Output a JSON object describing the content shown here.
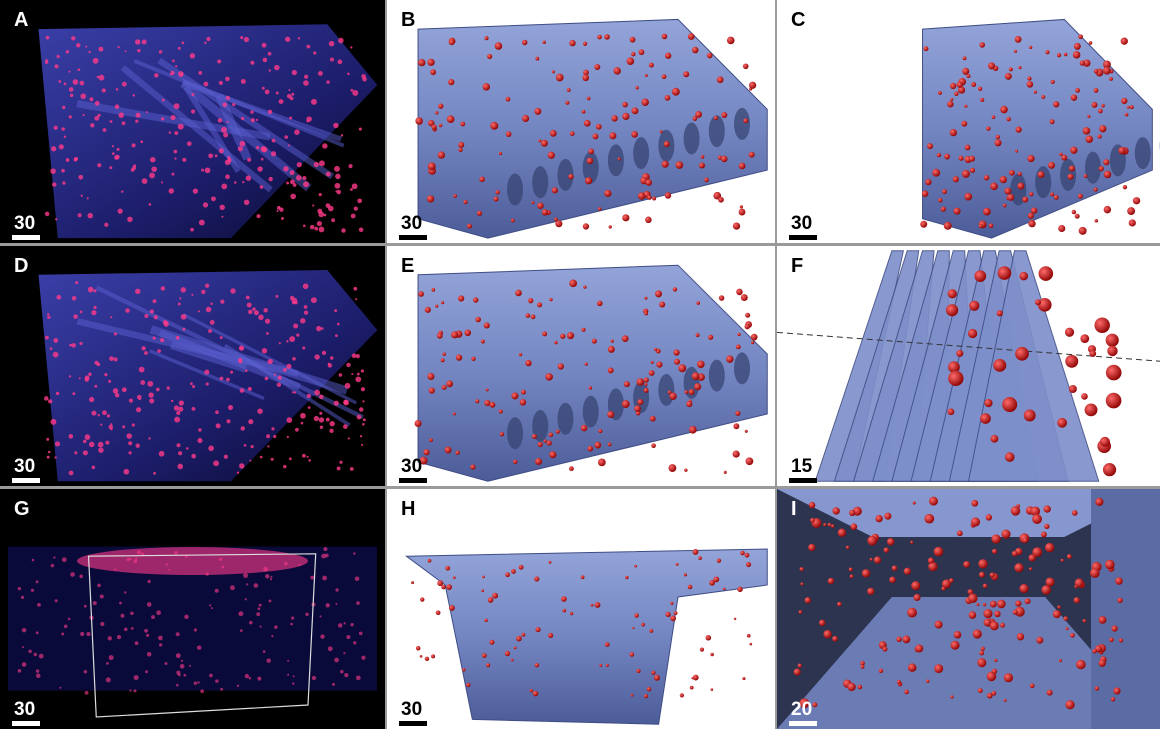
{
  "panels": [
    {
      "label": "A",
      "scale_bar": "30"
    },
    {
      "label": "B",
      "scale_bar": "30"
    },
    {
      "label": "C",
      "scale_bar": "30"
    },
    {
      "label": "D",
      "scale_bar": "30"
    },
    {
      "label": "E",
      "scale_bar": "30"
    },
    {
      "label": "F",
      "scale_bar": "15"
    },
    {
      "label": "G",
      "scale_bar": "30"
    },
    {
      "label": "H",
      "scale_bar": "30"
    },
    {
      "label": "I",
      "scale_bar": "20"
    }
  ]
}
